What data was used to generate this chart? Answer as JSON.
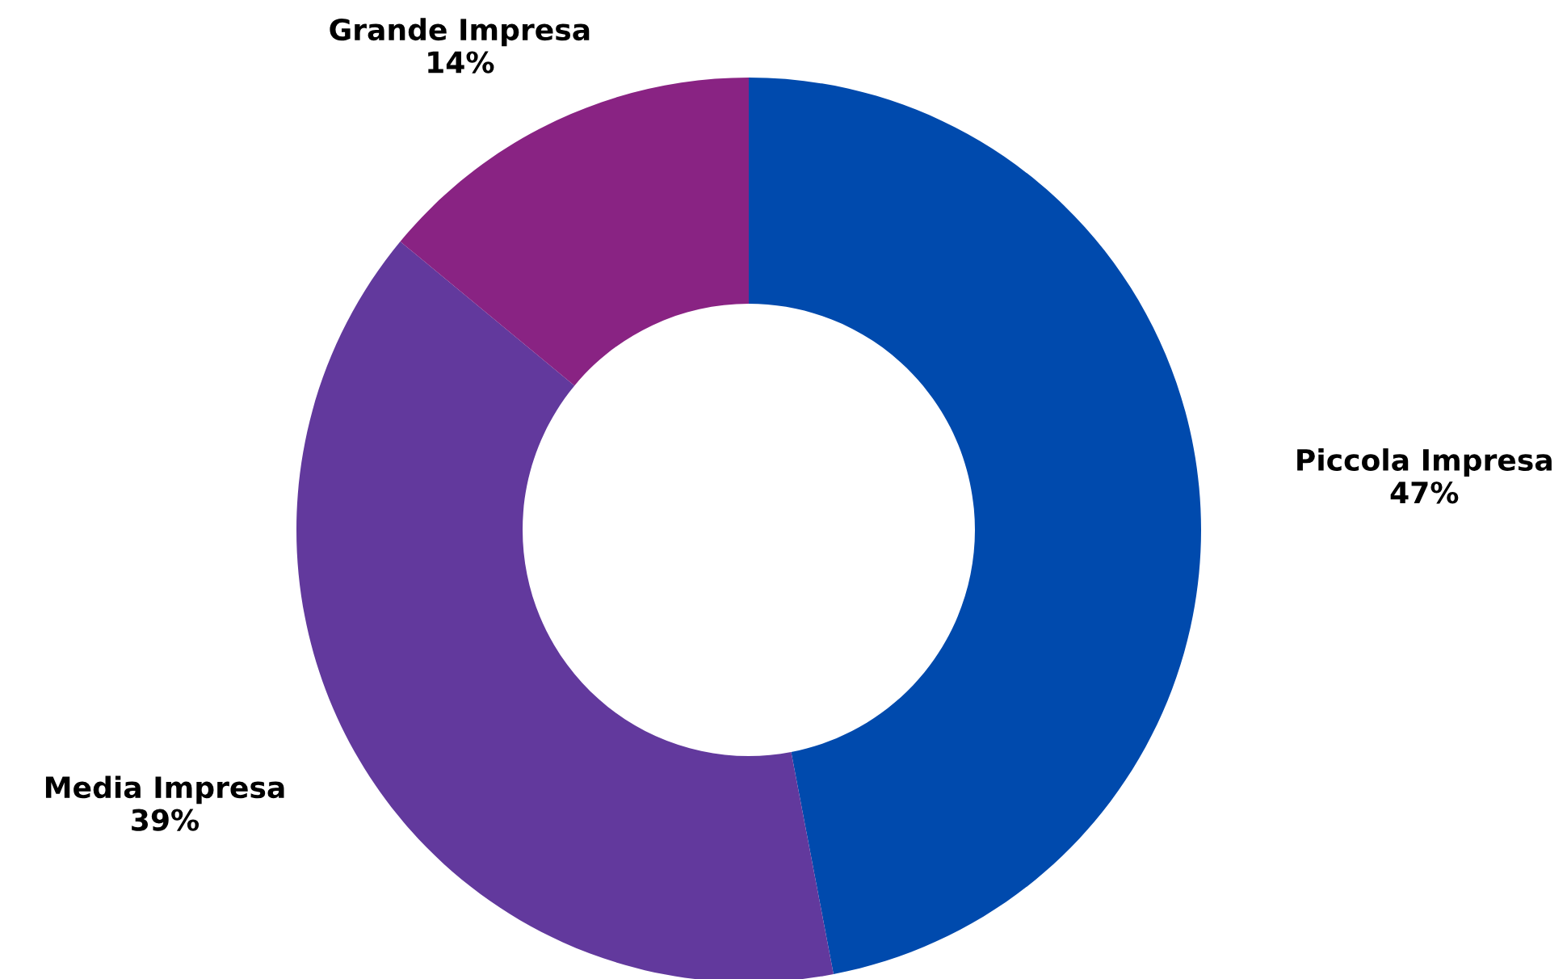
{
  "chart_data": {
    "type": "donut",
    "categories": [
      "Piccola Impresa",
      "Media Impresa",
      "Grande Impresa"
    ],
    "values": [
      47,
      39,
      14
    ],
    "colors": [
      "#004aad",
      "#62399d",
      "#892383"
    ],
    "value_labels": [
      "47%",
      "39%",
      "14%"
    ]
  }
}
